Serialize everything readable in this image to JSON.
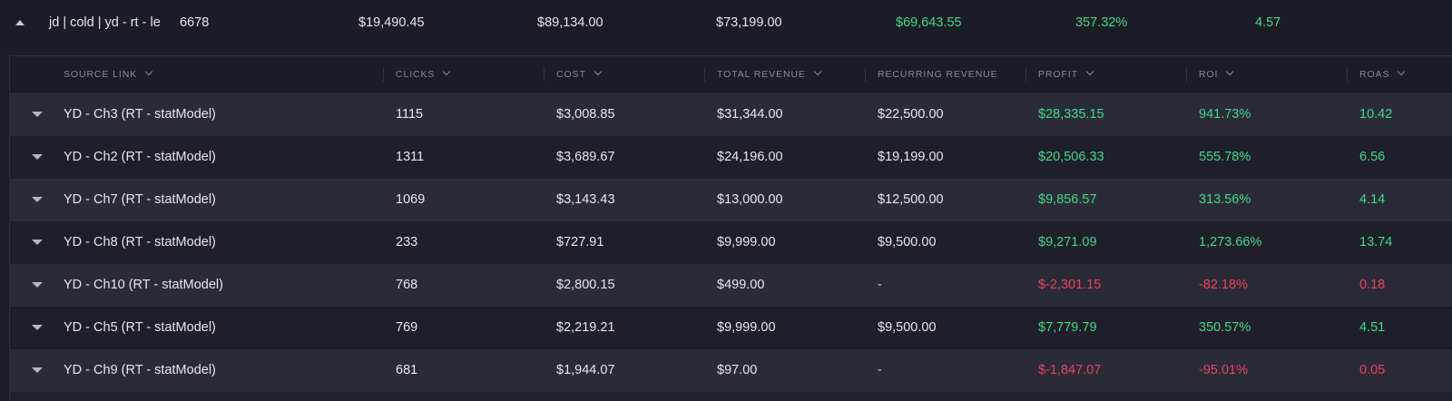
{
  "parent": {
    "name": "jd | cold | yd - rt - le",
    "clicks": "6678",
    "cost": "$19,490.45",
    "total_revenue": "$89,134.00",
    "recurring_revenue": "$73,199.00",
    "profit": "$69,643.55",
    "roi": "357.32%",
    "roas": "4.57"
  },
  "columns": {
    "source_link": "SOURCE LINK",
    "clicks": "CLICKS",
    "cost": "COST",
    "total_revenue": "TOTAL REVENUE",
    "recurring_revenue": "RECURRING REVENUE",
    "profit": "PROFIT",
    "roi": "ROI",
    "roas": "ROAS"
  },
  "rows": [
    {
      "source": "YD - Ch3 (RT - statModel)",
      "clicks": "1115",
      "cost": "$3,008.85",
      "total_revenue": "$31,344.00",
      "recurring_revenue": "$22,500.00",
      "profit": "$28,335.15",
      "roi": "941.73%",
      "roas": "10.42",
      "status": "positive"
    },
    {
      "source": "YD - Ch2 (RT - statModel)",
      "clicks": "1311",
      "cost": "$3,689.67",
      "total_revenue": "$24,196.00",
      "recurring_revenue": "$19,199.00",
      "profit": "$20,506.33",
      "roi": "555.78%",
      "roas": "6.56",
      "status": "positive"
    },
    {
      "source": "YD - Ch7 (RT - statModel)",
      "clicks": "1069",
      "cost": "$3,143.43",
      "total_revenue": "$13,000.00",
      "recurring_revenue": "$12,500.00",
      "profit": "$9,856.57",
      "roi": "313.56%",
      "roas": "4.14",
      "status": "positive"
    },
    {
      "source": "YD - Ch8 (RT - statModel)",
      "clicks": "233",
      "cost": "$727.91",
      "total_revenue": "$9,999.00",
      "recurring_revenue": "$9,500.00",
      "profit": "$9,271.09",
      "roi": "1,273.66%",
      "roas": "13.74",
      "status": "positive"
    },
    {
      "source": "YD - Ch10 (RT - statModel)",
      "clicks": "768",
      "cost": "$2,800.15",
      "total_revenue": "$499.00",
      "recurring_revenue": "-",
      "profit": "$-2,301.15",
      "roi": "-82.18%",
      "roas": "0.18",
      "status": "negative"
    },
    {
      "source": "YD - Ch5 (RT - statModel)",
      "clicks": "769",
      "cost": "$2,219.21",
      "total_revenue": "$9,999.00",
      "recurring_revenue": "$9,500.00",
      "profit": "$7,779.79",
      "roi": "350.57%",
      "roas": "4.51",
      "status": "positive"
    },
    {
      "source": "YD - Ch9 (RT - statModel)",
      "clicks": "681",
      "cost": "$1,944.07",
      "total_revenue": "$97.00",
      "recurring_revenue": "-",
      "profit": "$-1,847.07",
      "roi": "-95.01%",
      "roas": "0.05",
      "status": "negative"
    }
  ],
  "colors": {
    "positive": "#3fd98a",
    "negative": "#e5445e",
    "background": "#1d1d27",
    "row_alt": "#2b2b37",
    "row_base": "#1f1f29"
  },
  "icons": {
    "parent_toggle": "caret-up-icon",
    "row_toggle": "caret-down-icon",
    "sort": "chevron-down-icon"
  }
}
